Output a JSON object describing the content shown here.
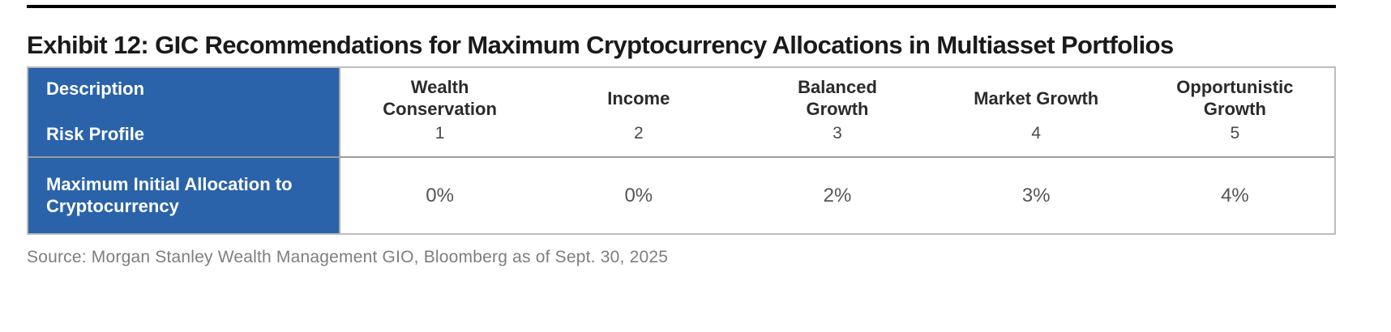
{
  "exhibit": {
    "title": "Exhibit 12: GIC Recommendations for Maximum Cryptocurrency Allocations in Multiasset Portfolios"
  },
  "table": {
    "header": {
      "description_label": "Description",
      "risk_profile_label": "Risk Profile",
      "columns": [
        {
          "name": "Wealth Conservation",
          "risk_profile": "1"
        },
        {
          "name": "Income",
          "risk_profile": "2"
        },
        {
          "name": "Balanced Growth",
          "risk_profile": "3"
        },
        {
          "name": "Market Growth",
          "risk_profile": "4"
        },
        {
          "name": "Opportunistic Growth",
          "risk_profile": "5"
        }
      ]
    },
    "rows": [
      {
        "label": "Maximum Initial Allocation to Cryptocurrency",
        "values": [
          "0%",
          "0%",
          "2%",
          "3%",
          "4%"
        ]
      }
    ]
  },
  "source": "Source: Morgan Stanley Wealth Management GIO, Bloomberg as of Sept. 30, 2025",
  "colors": {
    "header_blue": "#2a63a9",
    "outer_border_gray": "#bcbcbc",
    "row_divider_gray": "#9c9c9c",
    "title_black": "#1a1a1a",
    "value_gray": "#555555",
    "source_gray": "#7e7e7e"
  }
}
